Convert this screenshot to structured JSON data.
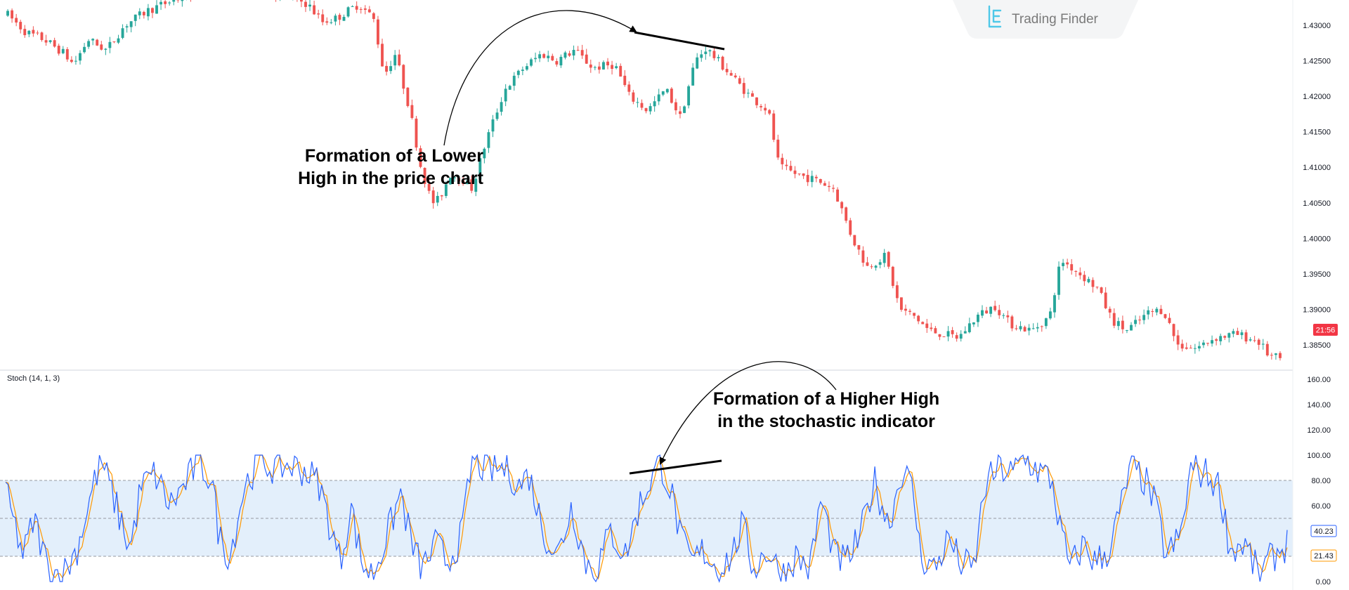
{
  "brand": {
    "name": "Trading Finder",
    "logo_icon": "tf-logo-icon"
  },
  "colors": {
    "up": "#26a69a",
    "down": "#ef5350",
    "k_line": "#2962ff",
    "d_line": "#ff9800",
    "band_fill": "#e3effb",
    "price_badge": "#f23645"
  },
  "chart_data": [
    {
      "type": "candlestick",
      "price_axis": {
        "ticks": [
          "1.43000",
          "1.42500",
          "1.42000",
          "1.41500",
          "1.41000",
          "1.40500",
          "1.40000",
          "1.39500",
          "1.39000",
          "1.38500"
        ],
        "ylim": [
          1.3815,
          1.433
        ],
        "current_label": "21:56"
      },
      "candle_count": 300,
      "path_anchors": [
        [
          0,
          1.4315
        ],
        [
          5,
          1.429
        ],
        [
          10,
          1.428
        ],
        [
          15,
          1.4262
        ],
        [
          18,
          1.4245
        ],
        [
          22,
          1.428
        ],
        [
          27,
          1.4265
        ],
        [
          32,
          1.43
        ],
        [
          38,
          1.432
        ],
        [
          45,
          1.4335
        ],
        [
          52,
          1.4345
        ],
        [
          60,
          1.435
        ],
        [
          75,
          1.4345
        ],
        [
          82,
          1.433
        ],
        [
          86,
          1.4305
        ],
        [
          90,
          1.431
        ],
        [
          96,
          1.433
        ],
        [
          100,
          1.431
        ],
        [
          103,
          1.423
        ],
        [
          106,
          1.426
        ],
        [
          110,
          1.418
        ],
        [
          113,
          1.41
        ],
        [
          116,
          1.405
        ],
        [
          118,
          1.4055
        ],
        [
          121,
          1.409
        ],
        [
          124,
          1.4085
        ],
        [
          127,
          1.407
        ],
        [
          131,
          1.414
        ],
        [
          136,
          1.421
        ],
        [
          141,
          1.424
        ],
        [
          146,
          1.426
        ],
        [
          150,
          1.425
        ],
        [
          155,
          1.4265
        ],
        [
          160,
          1.424
        ],
        [
          166,
          1.4245
        ],
        [
          170,
          1.42
        ],
        [
          175,
          1.418
        ],
        [
          180,
          1.421
        ],
        [
          184,
          1.417
        ],
        [
          188,
          1.425
        ],
        [
          191,
          1.4268
        ],
        [
          196,
          1.424
        ],
        [
          203,
          1.42
        ],
        [
          208,
          1.418
        ],
        [
          211,
          1.41
        ],
        [
          216,
          1.409
        ],
        [
          222,
          1.408
        ],
        [
          226,
          1.407
        ],
        [
          231,
          1.4
        ],
        [
          235,
          1.396
        ],
        [
          240,
          1.3975
        ],
        [
          244,
          1.39
        ],
        [
          248,
          1.389
        ],
        [
          252,
          1.387
        ],
        [
          256,
          1.3865
        ],
        [
          260,
          1.386
        ],
        [
          265,
          1.389
        ],
        [
          270,
          1.3905
        ],
        [
          274,
          1.388
        ],
        [
          280,
          1.387
        ],
        [
          285,
          1.389
        ],
        [
          288,
          1.397
        ],
        [
          292,
          1.3955
        ],
        [
          298,
          1.393
        ],
        [
          302,
          1.3885
        ],
        [
          306,
          1.387
        ],
        [
          312,
          1.3895
        ],
        [
          316,
          1.39
        ],
        [
          320,
          1.385
        ],
        [
          325,
          1.3845
        ],
        [
          330,
          1.386
        ],
        [
          336,
          1.3865
        ],
        [
          342,
          1.3855
        ],
        [
          345,
          1.3835
        ],
        [
          348,
          1.383
        ]
      ]
    },
    {
      "type": "line",
      "title": "Stoch (14, 1, 3)",
      "y_ticks": [
        "160.00",
        "140.00",
        "120.00",
        "100.00",
        "80.00",
        "60.00",
        "40.00",
        "21.43",
        "0.00"
      ],
      "ylim": [
        -3,
        165
      ],
      "levels": {
        "upper": 80,
        "middle": 50,
        "lower": 20
      },
      "last_values": {
        "k": "40.23",
        "d": "21.43"
      },
      "k_anchors": [
        [
          0,
          70
        ],
        [
          5,
          20
        ],
        [
          8,
          50
        ],
        [
          12,
          10
        ],
        [
          16,
          5
        ],
        [
          20,
          25
        ],
        [
          25,
          80
        ],
        [
          27,
          95
        ],
        [
          31,
          60
        ],
        [
          35,
          25
        ],
        [
          38,
          75
        ],
        [
          42,
          85
        ],
        [
          46,
          60
        ],
        [
          50,
          75
        ],
        [
          54,
          95
        ],
        [
          58,
          80
        ],
        [
          60,
          35
        ],
        [
          63,
          20
        ],
        [
          67,
          75
        ],
        [
          71,
          95
        ],
        [
          75,
          90
        ],
        [
          80,
          92
        ],
        [
          84,
          88
        ],
        [
          88,
          78
        ],
        [
          92,
          35
        ],
        [
          94,
          15
        ],
        [
          97,
          60
        ],
        [
          100,
          15
        ],
        [
          103,
          5
        ],
        [
          107,
          35
        ],
        [
          111,
          70
        ],
        [
          114,
          30
        ],
        [
          117,
          10
        ],
        [
          121,
          30
        ],
        [
          124,
          15
        ],
        [
          128,
          35
        ],
        [
          131,
          95
        ],
        [
          136,
          88
        ],
        [
          141,
          90
        ],
        [
          144,
          75
        ],
        [
          147,
          85
        ],
        [
          151,
          40
        ],
        [
          155,
          20
        ],
        [
          159,
          60
        ],
        [
          163,
          15
        ],
        [
          166,
          10
        ],
        [
          170,
          40
        ],
        [
          174,
          20
        ],
        [
          178,
          60
        ],
        [
          181,
          80
        ],
        [
          184,
          95
        ],
        [
          187,
          70
        ],
        [
          190,
          30
        ],
        [
          193,
          15
        ],
        [
          196,
          25
        ],
        [
          200,
          10
        ],
        [
          204,
          20
        ],
        [
          207,
          45
        ],
        [
          210,
          10
        ],
        [
          214,
          25
        ],
        [
          218,
          5
        ],
        [
          222,
          20
        ],
        [
          226,
          10
        ],
        [
          229,
          65
        ],
        [
          233,
          20
        ],
        [
          236,
          15
        ],
        [
          240,
          35
        ],
        [
          244,
          80
        ],
        [
          248,
          45
        ],
        [
          252,
          90
        ],
        [
          255,
          70
        ],
        [
          257,
          20
        ],
        [
          261,
          10
        ],
        [
          265,
          35
        ],
        [
          268,
          15
        ],
        [
          272,
          10
        ],
        [
          275,
          75
        ],
        [
          279,
          90
        ],
        [
          283,
          85
        ],
        [
          286,
          98
        ],
        [
          290,
          88
        ],
        [
          294,
          80
        ],
        [
          296,
          45
        ],
        [
          299,
          10
        ],
        [
          303,
          30
        ],
        [
          306,
          15
        ],
        [
          310,
          25
        ],
        [
          313,
          55
        ],
        [
          316,
          90
        ],
        [
          320,
          80
        ],
        [
          323,
          60
        ],
        [
          326,
          20
        ],
        [
          330,
          35
        ],
        [
          333,
          90
        ],
        [
          337,
          85
        ],
        [
          341,
          75
        ],
        [
          344,
          25
        ],
        [
          348,
          30
        ],
        [
          352,
          5
        ],
        [
          356,
          20
        ],
        [
          360,
          30
        ]
      ]
    }
  ],
  "annotations": {
    "price": {
      "lines": [
        "Formation of a Lower",
        "High in the price chart"
      ]
    },
    "stoch": {
      "lines": [
        "Formation of a Higher High",
        "in the stochastic indicator"
      ]
    }
  }
}
